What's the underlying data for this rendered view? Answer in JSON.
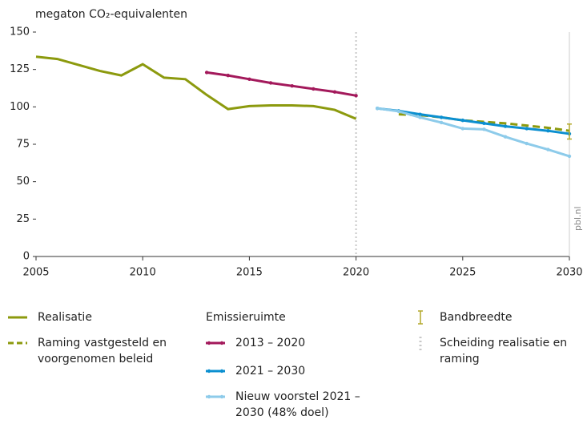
{
  "chart_data": {
    "type": "line",
    "y_axis_label": "megaton CO₂-equivalenten",
    "x": [
      2005,
      2006,
      2007,
      2008,
      2009,
      2010,
      2011,
      2012,
      2013,
      2014,
      2015,
      2016,
      2017,
      2018,
      2019,
      2020,
      2021,
      2022,
      2023,
      2024,
      2025,
      2026,
      2027,
      2028,
      2029,
      2030
    ],
    "xlim": [
      2005,
      2030
    ],
    "xticks": [
      2005,
      2010,
      2015,
      2020,
      2025,
      2030
    ],
    "ylim": [
      0,
      150
    ],
    "yticks": [
      0,
      25,
      50,
      75,
      100,
      125,
      150
    ],
    "grid": false,
    "series": [
      {
        "name": "Realisatie",
        "color": "#8c9a0e",
        "style": "solid",
        "markers": false,
        "values": [
          133.5,
          132,
          128,
          124,
          121,
          128.5,
          119.5,
          118.5,
          108,
          98.5,
          100.5,
          101,
          101,
          100.5,
          98,
          92,
          null,
          null,
          null,
          null,
          null,
          null,
          null,
          null,
          null,
          null
        ]
      },
      {
        "name": "Raming vastgesteld en voorgenomen beleid",
        "color": "#8c9a0e",
        "style": "dashed",
        "markers": false,
        "values": [
          null,
          null,
          null,
          null,
          null,
          null,
          null,
          null,
          null,
          null,
          null,
          null,
          null,
          null,
          null,
          null,
          null,
          95,
          94.5,
          93,
          91,
          90,
          89,
          87.5,
          86,
          84
        ]
      },
      {
        "name": "2013 – 2020",
        "color": "#a3195b",
        "style": "solid",
        "markers": true,
        "group": "Emissieruimte",
        "values": [
          null,
          null,
          null,
          null,
          null,
          null,
          null,
          null,
          123,
          121,
          118.5,
          116,
          114,
          112,
          110,
          107.5,
          null,
          null,
          null,
          null,
          null,
          null,
          null,
          null,
          null,
          null
        ]
      },
      {
        "name": "2021 – 2030",
        "color": "#0b8fd0",
        "style": "solid",
        "markers": true,
        "group": "Emissieruimte",
        "values": [
          null,
          null,
          null,
          null,
          null,
          null,
          null,
          null,
          null,
          null,
          null,
          null,
          null,
          null,
          null,
          null,
          99,
          97.3,
          95,
          93,
          91,
          89,
          87,
          85.5,
          84,
          82
        ]
      },
      {
        "name": "Nieuw voorstel 2021 – 2030 (48% doel)",
        "color": "#8dcbea",
        "style": "solid",
        "markers": true,
        "group": "Emissieruimte",
        "values": [
          null,
          null,
          null,
          null,
          null,
          null,
          null,
          null,
          null,
          null,
          null,
          null,
          null,
          null,
          null,
          null,
          99,
          97,
          93,
          89.5,
          85.5,
          85,
          80,
          75.5,
          71.5,
          67
        ]
      }
    ],
    "legend_group": "Emissieruimte",
    "band": {
      "name": "Bandbreedte",
      "color": "#b3a92a",
      "x": 2030,
      "low": 78.5,
      "high": 88.5
    },
    "separator": {
      "name": "Scheiding realisatie en raming",
      "color": "#c8c8c8",
      "x": 2020
    },
    "source": "pbl.nl"
  }
}
